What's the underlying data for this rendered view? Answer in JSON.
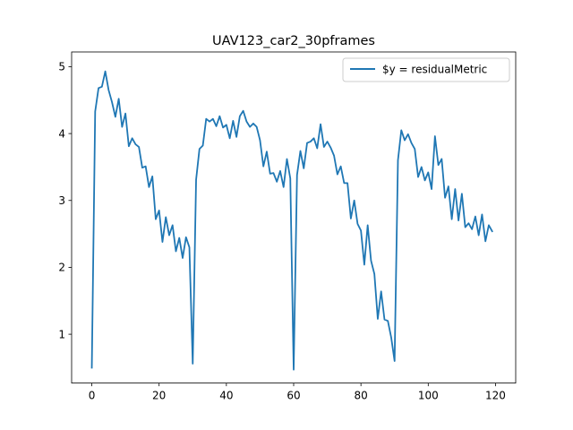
{
  "chart_data": {
    "type": "line",
    "title": "UAV123_car2_30pframes",
    "xlabel": "",
    "ylabel": "",
    "xlim": [
      -6,
      126
    ],
    "ylim": [
      0.27,
      5.22
    ],
    "xticks": [
      0,
      20,
      40,
      60,
      80,
      100,
      120
    ],
    "yticks": [
      1,
      2,
      3,
      4,
      5
    ],
    "grid": false,
    "legend_position": "top-right",
    "series": [
      {
        "name": "$y = residualMetric",
        "color": "#1f77b4",
        "x": [
          0,
          1,
          2,
          3,
          4,
          5,
          6,
          7,
          8,
          9,
          10,
          11,
          12,
          13,
          14,
          15,
          16,
          17,
          18,
          19,
          20,
          21,
          22,
          23,
          24,
          25,
          26,
          27,
          28,
          29,
          30,
          31,
          32,
          33,
          34,
          35,
          36,
          37,
          38,
          39,
          40,
          41,
          42,
          43,
          44,
          45,
          46,
          47,
          48,
          49,
          50,
          51,
          52,
          53,
          54,
          55,
          56,
          57,
          58,
          59,
          60,
          61,
          62,
          63,
          64,
          65,
          66,
          67,
          68,
          69,
          70,
          71,
          72,
          73,
          74,
          75,
          76,
          77,
          78,
          79,
          80,
          81,
          82,
          83,
          84,
          85,
          86,
          87,
          88,
          89,
          90,
          91,
          92,
          93,
          94,
          95,
          96,
          97,
          98,
          99,
          100,
          101,
          102,
          103,
          104,
          105,
          106,
          107,
          108,
          109,
          110,
          111,
          112,
          113,
          114,
          115,
          116,
          117,
          118,
          119
        ],
        "values": [
          0.5,
          4.33,
          4.68,
          4.7,
          4.93,
          4.65,
          4.47,
          4.25,
          4.52,
          4.1,
          4.3,
          3.81,
          3.93,
          3.84,
          3.8,
          3.49,
          3.51,
          3.2,
          3.36,
          2.72,
          2.85,
          2.38,
          2.75,
          2.48,
          2.63,
          2.24,
          2.44,
          2.14,
          2.45,
          2.3,
          0.56,
          3.31,
          3.77,
          3.82,
          4.22,
          4.18,
          4.22,
          4.11,
          4.26,
          4.09,
          4.13,
          3.93,
          4.19,
          3.95,
          4.26,
          4.34,
          4.18,
          4.1,
          4.15,
          4.1,
          3.9,
          3.51,
          3.73,
          3.4,
          3.41,
          3.28,
          3.44,
          3.2,
          3.62,
          3.33,
          0.47,
          3.38,
          3.74,
          3.48,
          3.86,
          3.88,
          3.93,
          3.78,
          4.14,
          3.8,
          3.88,
          3.79,
          3.67,
          3.39,
          3.51,
          3.26,
          3.26,
          2.73,
          3.0,
          2.65,
          2.55,
          2.04,
          2.63,
          2.1,
          1.9,
          1.23,
          1.64,
          1.22,
          1.2,
          0.95,
          0.6,
          3.6,
          4.05,
          3.9,
          3.99,
          3.86,
          3.77,
          3.35,
          3.5,
          3.3,
          3.42,
          3.17,
          3.96,
          3.53,
          3.62,
          3.04,
          3.21,
          2.72,
          3.17,
          2.7,
          3.1,
          2.6,
          2.66,
          2.57,
          2.76,
          2.48,
          2.79,
          2.39,
          2.63,
          2.54
        ]
      }
    ]
  }
}
